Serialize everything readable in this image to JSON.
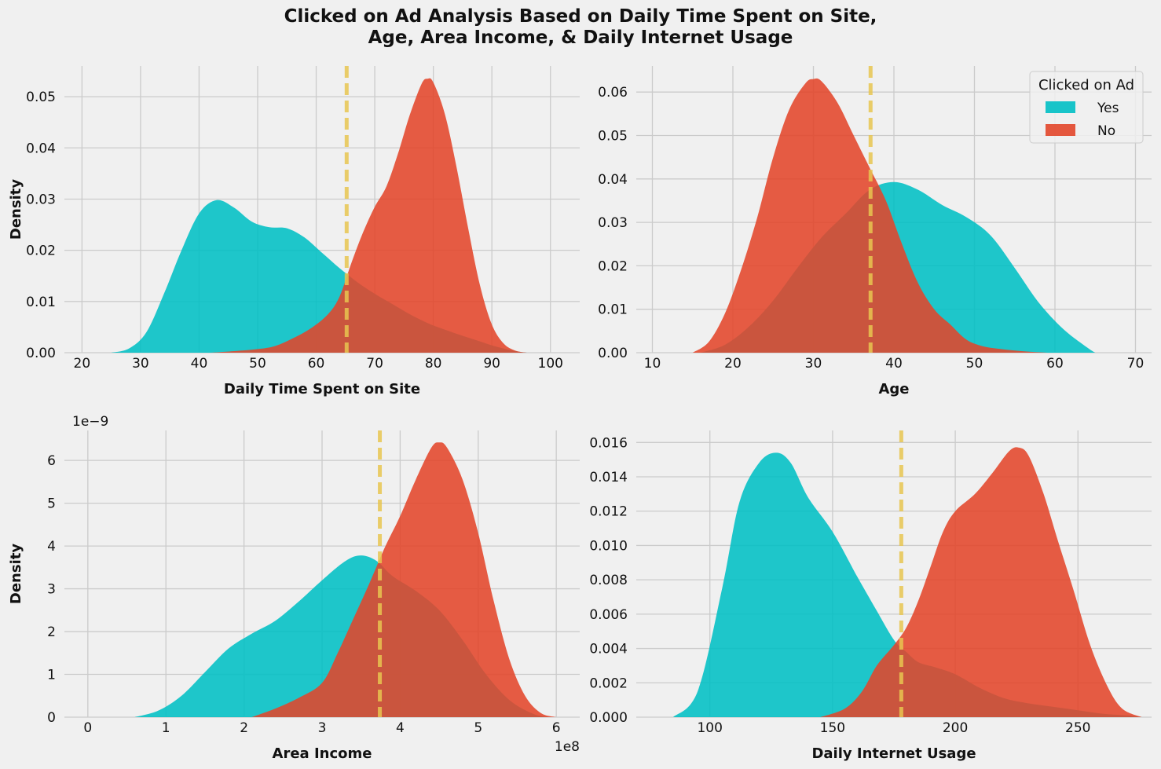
{
  "figure": {
    "title_line1": "Clicked on Ad Analysis Based on Daily Time Spent on Site,",
    "title_line2": "Age, Area Income, & Daily Internet Usage"
  },
  "legend": {
    "title": "Clicked on Ad",
    "placement": "top-right of Age panel",
    "entries": [
      {
        "label": "Yes",
        "color": "#00bfc4"
      },
      {
        "label": "No",
        "color": "#e2462a"
      }
    ]
  },
  "colors": {
    "yes": "#00bfc4",
    "no": "#e2462a",
    "mean_line": "#e8c650",
    "grid": "#cbcbcb",
    "background": "#f0f0f0"
  },
  "chart_data": [
    {
      "type": "area",
      "subtype": "kde",
      "title": "",
      "xlabel": "Daily Time Spent on Site",
      "ylabel": "Density",
      "xlim": [
        17,
        105
      ],
      "ylim": [
        0,
        0.056
      ],
      "xticks": [
        20,
        30,
        40,
        50,
        60,
        70,
        80,
        90,
        100
      ],
      "yticks": [
        0.0,
        0.01,
        0.02,
        0.03,
        0.04,
        0.05
      ],
      "ytick_decimals": 2,
      "offset_label": "",
      "grid": true,
      "mean_line": 65.2,
      "series": [
        {
          "name": "Yes",
          "x": [
            25,
            28,
            31,
            34,
            37,
            40,
            43,
            46,
            49,
            52,
            55,
            58,
            61,
            64,
            67,
            70,
            73,
            76,
            79,
            82,
            85,
            88,
            91,
            94,
            96
          ],
          "y": [
            0.0,
            0.0008,
            0.004,
            0.0115,
            0.02,
            0.0272,
            0.0298,
            0.0283,
            0.0256,
            0.0245,
            0.0243,
            0.0225,
            0.0195,
            0.0165,
            0.0138,
            0.0115,
            0.0095,
            0.0075,
            0.0058,
            0.0045,
            0.0033,
            0.0022,
            0.0011,
            0.0003,
            0.0
          ]
        },
        {
          "name": "No",
          "x": [
            42,
            46,
            50,
            53,
            56,
            59,
            62,
            64,
            66,
            68,
            70,
            72,
            74,
            76,
            78,
            79,
            80,
            82,
            84,
            86,
            88,
            90,
            92,
            94,
            96
          ],
          "y": [
            0.0,
            0.0003,
            0.0007,
            0.0013,
            0.0028,
            0.0047,
            0.0075,
            0.011,
            0.0175,
            0.0235,
            0.0285,
            0.0325,
            0.039,
            0.0465,
            0.0525,
            0.0535,
            0.0528,
            0.0465,
            0.036,
            0.024,
            0.013,
            0.0055,
            0.0018,
            0.0004,
            0.0
          ]
        }
      ]
    },
    {
      "type": "area",
      "subtype": "kde",
      "title": "",
      "xlabel": "Age",
      "ylabel": "",
      "xlim": [
        8,
        72
      ],
      "ylim": [
        0,
        0.066
      ],
      "xticks": [
        10,
        20,
        30,
        40,
        50,
        60,
        70
      ],
      "yticks": [
        0.0,
        0.01,
        0.02,
        0.03,
        0.04,
        0.05,
        0.06
      ],
      "ytick_decimals": 2,
      "offset_label": "",
      "grid": true,
      "mean_line": 37.1,
      "series": [
        {
          "name": "Yes",
          "x": [
            16,
            19,
            22,
            25,
            28,
            31,
            34,
            37,
            40,
            43,
            46,
            49,
            52,
            55,
            58,
            61,
            64,
            65
          ],
          "y": [
            0.0,
            0.0018,
            0.006,
            0.012,
            0.0195,
            0.0265,
            0.032,
            0.0375,
            0.0393,
            0.0375,
            0.034,
            0.0312,
            0.027,
            0.0195,
            0.0115,
            0.0055,
            0.0012,
            0.0
          ]
        },
        {
          "name": "No",
          "x": [
            15,
            17,
            19,
            21,
            23,
            25,
            27,
            29,
            30,
            31,
            33,
            35,
            37,
            39,
            41,
            43,
            45,
            47,
            49,
            51,
            53,
            55,
            57,
            59
          ],
          "y": [
            0.0,
            0.0025,
            0.009,
            0.019,
            0.031,
            0.045,
            0.056,
            0.062,
            0.063,
            0.0625,
            0.0575,
            0.05,
            0.0425,
            0.035,
            0.025,
            0.016,
            0.01,
            0.0065,
            0.003,
            0.0015,
            0.0009,
            0.0005,
            0.0002,
            0.0
          ]
        }
      ]
    },
    {
      "type": "area",
      "subtype": "kde",
      "title": "",
      "xlabel": "Area Income",
      "ylabel": "Density",
      "xlim": [
        -0.3,
        6.3
      ],
      "ylim": [
        0,
        6.7
      ],
      "xticks": [
        0,
        1,
        2,
        3,
        4,
        5,
        6
      ],
      "yticks": [
        0,
        1,
        2,
        3,
        4,
        5,
        6
      ],
      "ytick_decimals": 0,
      "offset_label": "1e−9",
      "x_offset_label": "1e8",
      "grid": true,
      "mean_line": 3.74,
      "series": [
        {
          "name": "Yes",
          "x": [
            0.6,
            0.9,
            1.2,
            1.5,
            1.8,
            2.1,
            2.4,
            2.7,
            3.0,
            3.3,
            3.5,
            3.7,
            3.9,
            4.2,
            4.5,
            4.8,
            5.1,
            5.4,
            5.7,
            5.9
          ],
          "y": [
            0.0,
            0.15,
            0.5,
            1.05,
            1.6,
            1.95,
            2.25,
            2.7,
            3.2,
            3.65,
            3.78,
            3.65,
            3.3,
            2.95,
            2.5,
            1.8,
            1.0,
            0.4,
            0.08,
            0.0
          ]
        },
        {
          "name": "No",
          "x": [
            2.1,
            2.4,
            2.7,
            3.0,
            3.2,
            3.4,
            3.6,
            3.8,
            4.0,
            4.2,
            4.4,
            4.5,
            4.6,
            4.8,
            5.0,
            5.2,
            5.4,
            5.6,
            5.8,
            6.0
          ],
          "y": [
            0.0,
            0.2,
            0.45,
            0.8,
            1.5,
            2.3,
            3.1,
            3.95,
            4.7,
            5.55,
            6.3,
            6.42,
            6.3,
            5.55,
            4.3,
            2.7,
            1.35,
            0.5,
            0.1,
            0.0
          ]
        }
      ]
    },
    {
      "type": "area",
      "subtype": "kde",
      "title": "",
      "xlabel": "Daily Internet Usage",
      "ylabel": "",
      "xlim": [
        70,
        280
      ],
      "ylim": [
        0,
        0.0167
      ],
      "xticks": [
        100,
        150,
        200,
        250
      ],
      "yticks": [
        0.0,
        0.002,
        0.004,
        0.006,
        0.008,
        0.01,
        0.012,
        0.014,
        0.016
      ],
      "ytick_decimals": 3,
      "offset_label": "",
      "grid": true,
      "mean_line": 178,
      "series": [
        {
          "name": "Yes",
          "x": [
            85,
            95,
            105,
            112,
            120,
            127,
            133,
            140,
            150,
            160,
            168,
            175,
            180,
            185,
            192,
            200,
            210,
            220,
            230,
            240,
            250,
            260,
            270,
            276
          ],
          "y": [
            0.0,
            0.0015,
            0.0075,
            0.0125,
            0.0148,
            0.0154,
            0.0148,
            0.0128,
            0.0108,
            0.0082,
            0.0062,
            0.0045,
            0.0038,
            0.0032,
            0.0029,
            0.0025,
            0.0017,
            0.0011,
            0.0008,
            0.0006,
            0.0004,
            0.0002,
            0.0001,
            0.0
          ]
        },
        {
          "name": "No",
          "x": [
            145,
            155,
            162,
            168,
            175,
            180,
            185,
            190,
            195,
            200,
            208,
            215,
            222,
            226,
            230,
            236,
            242,
            248,
            255,
            262,
            268,
            276
          ],
          "y": [
            0.0,
            0.0005,
            0.0015,
            0.003,
            0.0042,
            0.0052,
            0.0068,
            0.0088,
            0.0108,
            0.012,
            0.013,
            0.0142,
            0.0155,
            0.0157,
            0.0152,
            0.013,
            0.0102,
            0.0075,
            0.0042,
            0.0018,
            0.0005,
            0.0
          ]
        }
      ]
    }
  ]
}
